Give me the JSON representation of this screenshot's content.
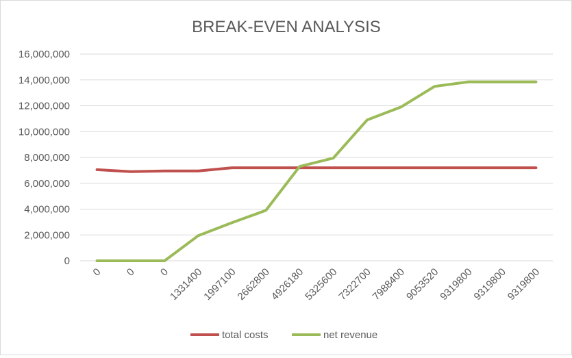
{
  "chart_data": {
    "type": "line",
    "title": "BREAK-EVEN ANALYSIS",
    "xlabel": "",
    "ylabel": "",
    "x": [
      "0",
      "0",
      "0",
      "1331400",
      "1997100",
      "2662800",
      "4926180",
      "5325600",
      "7322700",
      "7988400",
      "9053520",
      "9319800",
      "9319800",
      "9319800"
    ],
    "ylim": [
      0,
      16000000
    ],
    "yticks": [
      0,
      2000000,
      4000000,
      6000000,
      8000000,
      10000000,
      12000000,
      14000000,
      16000000
    ],
    "ytick_labels": [
      "0",
      "2,000,000",
      "4,000,000",
      "6,000,000",
      "8,000,000",
      "10,000,000",
      "12,000,000",
      "14,000,000",
      "16,000,000"
    ],
    "grid": true,
    "legend_position": "bottom",
    "series": [
      {
        "name": "total costs",
        "color": "#c0504d",
        "values": [
          7050000,
          6900000,
          6950000,
          6950000,
          7200000,
          7200000,
          7200000,
          7200000,
          7200000,
          7200000,
          7200000,
          7200000,
          7200000,
          7200000
        ]
      },
      {
        "name": "net revenue",
        "color": "#9bbb59",
        "values": [
          0,
          0,
          0,
          1950000,
          2950000,
          3900000,
          7300000,
          7950000,
          10900000,
          11900000,
          13500000,
          13850000,
          13850000,
          13850000
        ]
      }
    ]
  }
}
